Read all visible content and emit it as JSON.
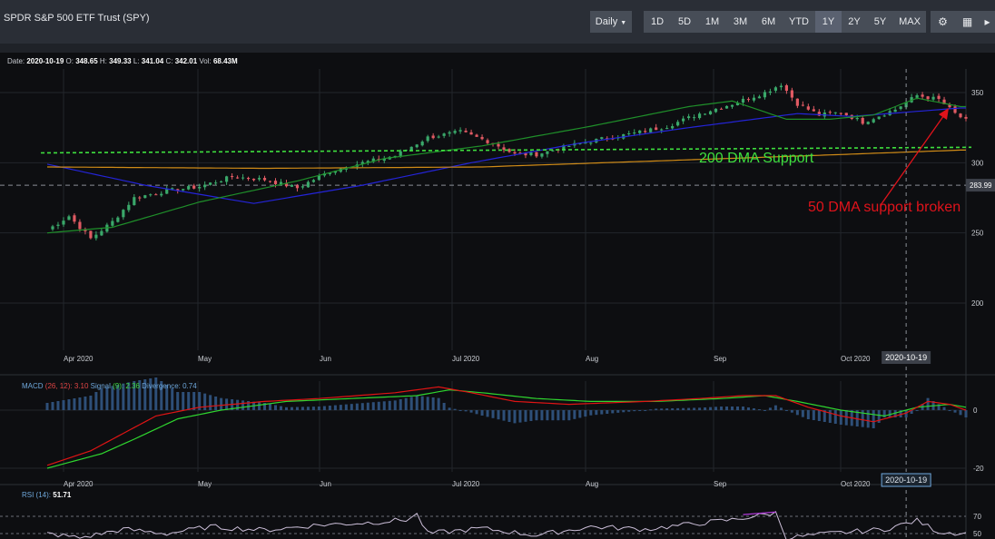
{
  "header": {
    "title": "SPDR S&P 500 ETF Trust (SPY)",
    "interval_label": "Daily",
    "ranges": [
      "1D",
      "5D",
      "1M",
      "3M",
      "6M",
      "YTD",
      "1Y",
      "2Y",
      "5Y",
      "MAX"
    ],
    "active_range": "1Y",
    "tool_icons": [
      "settings-icon",
      "calculator-icon",
      "overflow-icon"
    ]
  },
  "ohlc": {
    "date_label": "Date:",
    "date": "2020-10-19",
    "open_label": "O:",
    "open": "348.65",
    "high_label": "H:",
    "high": "349.33",
    "low_label": "L:",
    "low": "341.04",
    "close_label": "C:",
    "close": "342.01",
    "volume_label": "Vol:",
    "volume": "68.43M"
  },
  "price_axis": {
    "ticks": [
      "350",
      "300",
      "250",
      "200"
    ],
    "tick_values": [
      350,
      300,
      250,
      200
    ],
    "marker": "283.99",
    "range": [
      185,
      365
    ]
  },
  "x_axis": {
    "months": [
      "Apr 2020",
      "May",
      "Jun",
      "Jul 2020",
      "Aug",
      "Sep",
      "Oct 2020"
    ],
    "crosshair_date": "2020-10-19"
  },
  "annotations": {
    "dma200": "200 DMA Support",
    "dma50": "50 DMA support broken"
  },
  "macd": {
    "label": "MACD",
    "params": "(26, 12):",
    "macd_value": "3.10",
    "signal_label": "Signal",
    "signal_param": "(9):",
    "signal_value": "2.36",
    "divergence_label": "Divergence:",
    "divergence_value": "0.74",
    "ticks": [
      "0",
      "-20"
    ],
    "tick_values": [
      0,
      -20
    ],
    "range": [
      -22,
      12
    ]
  },
  "rsi": {
    "label": "RSI (14):",
    "value": "51.71",
    "ticks": [
      "70",
      "50"
    ],
    "tick_values": [
      70,
      50
    ]
  },
  "colors": {
    "up": "#3aa86a",
    "down": "#e05a63",
    "dma50": "#2424d8",
    "dma20": "#1f8f2a",
    "dma200": "#d08b17",
    "support": "#3ee03e",
    "annotation_red": "#e0131b",
    "macd": "#e01414",
    "signal": "#2fd62f",
    "rsi": "#ccbfd9"
  },
  "chart_data": {
    "type": "candlestick",
    "period": "Mar 2020 – Oct 2020 (daily)",
    "series": [
      {
        "name": "50 DMA",
        "anchors": [
          [
            0,
            299
          ],
          [
            18,
            284
          ],
          [
            38,
            271
          ],
          [
            58,
            284
          ],
          [
            78,
            300
          ],
          [
            98,
            314
          ],
          [
            118,
            325
          ],
          [
            138,
            335
          ],
          [
            148,
            333
          ],
          [
            168,
            339
          ]
        ]
      },
      {
        "name": "200 DMA",
        "anchors": [
          [
            0,
            297
          ],
          [
            40,
            296
          ],
          [
            80,
            297
          ],
          [
            110,
            301
          ],
          [
            140,
            305
          ],
          [
            168,
            309
          ]
        ]
      },
      {
        "name": "20 DMA",
        "anchors": [
          [
            0,
            250
          ],
          [
            12,
            254
          ],
          [
            28,
            272
          ],
          [
            46,
            287
          ],
          [
            62,
            303
          ],
          [
            80,
            312
          ],
          [
            100,
            326
          ],
          [
            118,
            340
          ],
          [
            126,
            344
          ],
          [
            136,
            331
          ],
          [
            144,
            331
          ],
          [
            152,
            334
          ],
          [
            160,
            346
          ],
          [
            168,
            340
          ]
        ]
      }
    ],
    "support_line": [
      307,
      311
    ],
    "last_close": 342.01,
    "crosshair_index": 158
  }
}
